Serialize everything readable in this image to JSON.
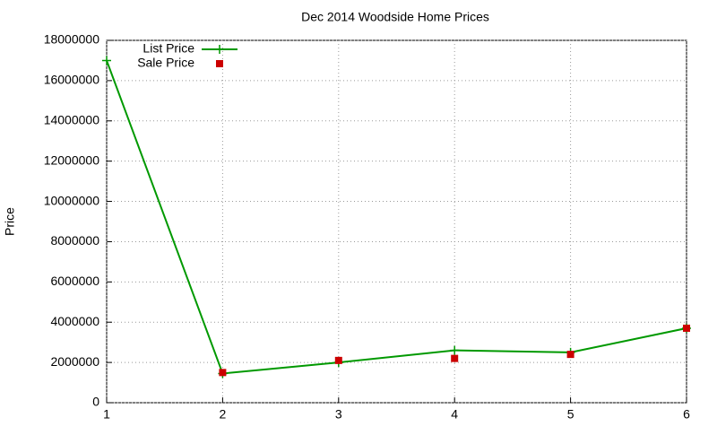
{
  "chart_data": {
    "type": "line",
    "title": "Dec 2014 Woodside Home Prices",
    "y_label": "Price",
    "x": [
      1,
      2,
      3,
      4,
      5,
      6
    ],
    "series": [
      {
        "name": "List Price",
        "color": "#009900",
        "mode": "lines+points",
        "values": [
          17000000,
          1450000,
          2000000,
          2600000,
          2500000,
          3700000
        ]
      },
      {
        "name": "Sale Price",
        "color": "#cc0000",
        "mode": "points",
        "values": [
          null,
          1500000,
          2100000,
          2200000,
          2400000,
          3700000
        ]
      }
    ],
    "xlim": [
      1,
      6
    ],
    "xticks": [
      1,
      2,
      3,
      4,
      5,
      6
    ],
    "ylim": [
      0,
      18000000
    ],
    "yticks": [
      0,
      2000000,
      4000000,
      6000000,
      8000000,
      10000000,
      12000000,
      14000000,
      16000000,
      18000000
    ],
    "grid": true,
    "legend": "top-left"
  }
}
